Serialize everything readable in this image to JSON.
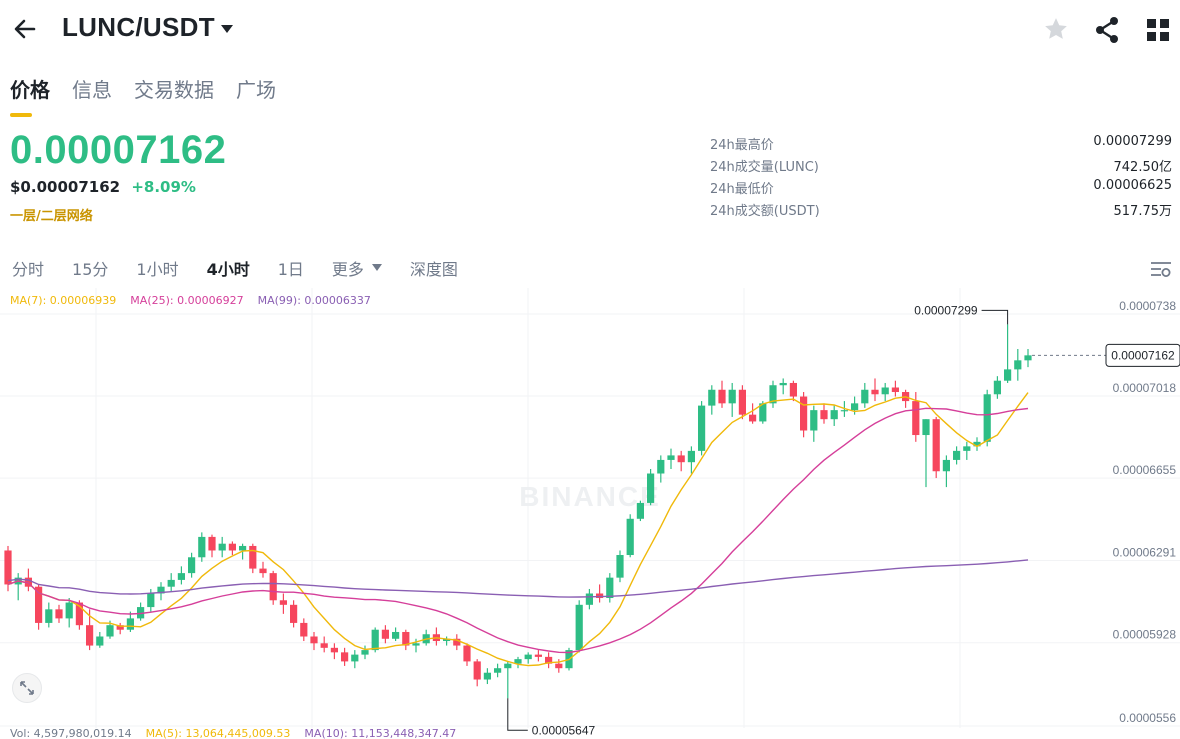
{
  "header": {
    "pair": "LUNC/USDT",
    "icons": [
      "back-arrow-icon",
      "caret-down-icon",
      "star-icon",
      "share-icon",
      "grid-icon"
    ]
  },
  "tabs": [
    {
      "label": "价格",
      "active": true
    },
    {
      "label": "信息",
      "active": false
    },
    {
      "label": "交易数据",
      "active": false
    },
    {
      "label": "广场",
      "active": false
    }
  ],
  "price": {
    "last": "0.00007162",
    "usd": "$0.00007162",
    "change": "+8.09%",
    "network": "一层/二层网络"
  },
  "stats": [
    {
      "label": "24h最高价",
      "value": "0.00007299"
    },
    {
      "label": "24h成交量(LUNC)",
      "value": "742.50亿"
    },
    {
      "label": "24h最低价",
      "value": "0.00006625"
    },
    {
      "label": "24h成交额(USDT)",
      "value": "517.75万"
    }
  ],
  "intervals": [
    {
      "label": "分时",
      "active": false
    },
    {
      "label": "15分",
      "active": false
    },
    {
      "label": "1小时",
      "active": false
    },
    {
      "label": "4小时",
      "active": true
    },
    {
      "label": "1日",
      "active": false
    },
    {
      "label": "更多",
      "active": false,
      "has_caret": true
    },
    {
      "label": "深度图",
      "active": false
    }
  ],
  "ma_legend": {
    "ma7": "MA(7): 0.00006939",
    "ma25": "MA(25): 0.00006927",
    "ma99": "MA(99): 0.00006337"
  },
  "volume_legend": {
    "vol": "Vol: 4,597,980,019.14",
    "ma5": "MA(5): 13,064,445,009.53",
    "ma10": "MA(10): 11,153,448,347.47"
  },
  "colors": {
    "up": "#2ebd85",
    "down": "#f6465d",
    "ma7": "#f0b90b",
    "ma25": "#d53f9a",
    "ma99": "#8a5fb3",
    "accent": "#f0b90b"
  },
  "chart_data": {
    "type": "candlestick",
    "watermark": "BINANCE",
    "y_ticks": [
      "0.0000738",
      "0.00007018",
      "0.00006655",
      "0.00006291",
      "0.00005928",
      "0.0000556"
    ],
    "ylim": [
      5.56e-05,
      7.38e-05
    ],
    "current_price_label": "0.00007162",
    "high_annotation": "0.00007299",
    "low_annotation": "0.00005647",
    "candles": [
      [
        6.3e-05,
        6.32e-05,
        6.12e-05,
        6.15e-05
      ],
      [
        6.15e-05,
        6.2e-05,
        6.08e-05,
        6.18e-05
      ],
      [
        6.18e-05,
        6.22e-05,
        6.12e-05,
        6.14e-05
      ],
      [
        6.14e-05,
        6.15e-05,
        5.95e-05,
        5.98e-05
      ],
      [
        5.98e-05,
        6.07e-05,
        5.96e-05,
        6.04e-05
      ],
      [
        6.04e-05,
        6.06e-05,
        5.98e-05,
        6e-05
      ],
      [
        6e-05,
        6.09e-05,
        5.96e-05,
        6.07e-05
      ],
      [
        6.07e-05,
        6.08e-05,
        5.95e-05,
        5.97e-05
      ],
      [
        5.97e-05,
        6.04e-05,
        5.86e-05,
        5.88e-05
      ],
      [
        5.88e-05,
        5.94e-05,
        5.87e-05,
        5.92e-05
      ],
      [
        5.92e-05,
        5.99e-05,
        5.91e-05,
        5.97e-05
      ],
      [
        5.97e-05,
        5.98e-05,
        5.93e-05,
        5.95e-05
      ],
      [
        5.95e-05,
        6.03e-05,
        5.94e-05,
        6e-05
      ],
      [
        6e-05,
        6.07e-05,
        5.99e-05,
        6.05e-05
      ],
      [
        6.05e-05,
        6.13e-05,
        6.03e-05,
        6.11e-05
      ],
      [
        6.11e-05,
        6.16e-05,
        6.08e-05,
        6.14e-05
      ],
      [
        6.14e-05,
        6.2e-05,
        6.12e-05,
        6.17e-05
      ],
      [
        6.17e-05,
        6.23e-05,
        6.15e-05,
        6.2e-05
      ],
      [
        6.2e-05,
        6.29e-05,
        6.18e-05,
        6.27e-05
      ],
      [
        6.27e-05,
        6.38e-05,
        6.25e-05,
        6.36e-05
      ],
      [
        6.36e-05,
        6.37e-05,
        6.27e-05,
        6.3e-05
      ],
      [
        6.3e-05,
        6.36e-05,
        6.27e-05,
        6.33e-05
      ],
      [
        6.33e-05,
        6.34e-05,
        6.28e-05,
        6.3e-05
      ],
      [
        6.3e-05,
        6.33e-05,
        6.26e-05,
        6.32e-05
      ],
      [
        6.32e-05,
        6.33e-05,
        6.2e-05,
        6.22e-05
      ],
      [
        6.22e-05,
        6.25e-05,
        6.18e-05,
        6.2e-05
      ],
      [
        6.2e-05,
        6.21e-05,
        6.06e-05,
        6.08e-05
      ],
      [
        6.08e-05,
        6.11e-05,
        6.02e-05,
        6.06e-05
      ],
      [
        6.06e-05,
        6.08e-05,
        5.96e-05,
        5.98e-05
      ],
      [
        5.98e-05,
        6e-05,
        5.9e-05,
        5.92e-05
      ],
      [
        5.92e-05,
        5.94e-05,
        5.86e-05,
        5.89e-05
      ],
      [
        5.89e-05,
        5.92e-05,
        5.85e-05,
        5.87e-05
      ],
      [
        5.87e-05,
        5.89e-05,
        5.82e-05,
        5.85e-05
      ],
      [
        5.85e-05,
        5.87e-05,
        5.79e-05,
        5.81e-05
      ],
      [
        5.81e-05,
        5.86e-05,
        5.78e-05,
        5.84e-05
      ],
      [
        5.84e-05,
        5.88e-05,
        5.82e-05,
        5.86e-05
      ],
      [
        5.86e-05,
        5.96e-05,
        5.85e-05,
        5.95e-05
      ],
      [
        5.95e-05,
        5.97e-05,
        5.89e-05,
        5.91e-05
      ],
      [
        5.91e-05,
        5.96e-05,
        5.9e-05,
        5.94e-05
      ],
      [
        5.94e-05,
        5.95e-05,
        5.86e-05,
        5.88e-05
      ],
      [
        5.88e-05,
        5.91e-05,
        5.85e-05,
        5.89e-05
      ],
      [
        5.89e-05,
        5.95e-05,
        5.88e-05,
        5.93e-05
      ],
      [
        5.93e-05,
        5.96e-05,
        5.88e-05,
        5.9e-05
      ],
      [
        5.9e-05,
        5.92e-05,
        5.88e-05,
        5.91e-05
      ],
      [
        5.91e-05,
        5.93e-05,
        5.86e-05,
        5.88e-05
      ],
      [
        5.88e-05,
        5.89e-05,
        5.79e-05,
        5.81e-05
      ],
      [
        5.81e-05,
        5.82e-05,
        5.7e-05,
        5.73e-05
      ],
      [
        5.73e-05,
        5.78e-05,
        5.71e-05,
        5.76e-05
      ],
      [
        5.76e-05,
        5.8e-05,
        5.74e-05,
        5.78e-05
      ],
      [
        5.78e-05,
        5.81e-05,
        5.647e-05,
        5.8e-05
      ],
      [
        5.8e-05,
        5.83e-05,
        5.78e-05,
        5.82e-05
      ],
      [
        5.82e-05,
        5.85e-05,
        5.8e-05,
        5.84e-05
      ],
      [
        5.84e-05,
        5.86e-05,
        5.81e-05,
        5.83e-05
      ],
      [
        5.83e-05,
        5.85e-05,
        5.78e-05,
        5.8e-05
      ],
      [
        5.8e-05,
        5.82e-05,
        5.76e-05,
        5.78e-05
      ],
      [
        5.78e-05,
        5.87e-05,
        5.77e-05,
        5.86e-05
      ],
      [
        5.86e-05,
        6.08e-05,
        5.85e-05,
        6.06e-05
      ],
      [
        6.06e-05,
        6.13e-05,
        6.04e-05,
        6.11e-05
      ],
      [
        6.11e-05,
        6.15e-05,
        6.07e-05,
        6.09e-05
      ],
      [
        6.09e-05,
        6.2e-05,
        6.07e-05,
        6.18e-05
      ],
      [
        6.18e-05,
        6.3e-05,
        6.16e-05,
        6.28e-05
      ],
      [
        6.28e-05,
        6.46e-05,
        6.27e-05,
        6.44e-05
      ],
      [
        6.44e-05,
        6.52e-05,
        6.43e-05,
        6.51e-05
      ],
      [
        6.51e-05,
        6.66e-05,
        6.5e-05,
        6.64e-05
      ],
      [
        6.64e-05,
        6.72e-05,
        6.6e-05,
        6.7e-05
      ],
      [
        6.7e-05,
        6.75e-05,
        6.66e-05,
        6.72e-05
      ],
      [
        6.72e-05,
        6.74e-05,
        6.65e-05,
        6.69e-05
      ],
      [
        6.69e-05,
        6.76e-05,
        6.64e-05,
        6.74e-05
      ],
      [
        6.74e-05,
        6.96e-05,
        6.72e-05,
        6.94e-05
      ],
      [
        6.94e-05,
        7.03e-05,
        6.9e-05,
        7.01e-05
      ],
      [
        7.01e-05,
        7.05e-05,
        6.93e-05,
        6.95e-05
      ],
      [
        6.95e-05,
        7.04e-05,
        6.89e-05,
        7.01e-05
      ],
      [
        7.01e-05,
        7.03e-05,
        6.88e-05,
        6.9e-05
      ],
      [
        6.9e-05,
        6.95e-05,
        6.86e-05,
        6.87e-05
      ],
      [
        6.87e-05,
        6.96e-05,
        6.86e-05,
        6.95e-05
      ],
      [
        6.95e-05,
        7.05e-05,
        6.93e-05,
        7.03e-05
      ],
      [
        7.03e-05,
        7.06e-05,
        6.99e-05,
        7.04e-05
      ],
      [
        7.04e-05,
        7.05e-05,
        6.96e-05,
        6.98e-05
      ],
      [
        6.98e-05,
        7e-05,
        6.8e-05,
        6.83e-05
      ],
      [
        6.83e-05,
        6.94e-05,
        6.78e-05,
        6.92e-05
      ],
      [
        6.92e-05,
        6.95e-05,
        6.86e-05,
        6.88e-05
      ],
      [
        6.88e-05,
        6.94e-05,
        6.85e-05,
        6.92e-05
      ],
      [
        6.92e-05,
        6.96e-05,
        6.89e-05,
        6.92e-05
      ],
      [
        6.92e-05,
        6.98e-05,
        6.9e-05,
        6.95e-05
      ],
      [
        6.95e-05,
        7.04e-05,
        6.93e-05,
        7.01e-05
      ],
      [
        7.01e-05,
        7.06e-05,
        6.96e-05,
        6.99e-05
      ],
      [
        6.99e-05,
        7.04e-05,
        6.96e-05,
        7.02e-05
      ],
      [
        7.02e-05,
        7.05e-05,
        6.98e-05,
        7e-05
      ],
      [
        7e-05,
        7.01e-05,
        6.93e-05,
        6.96e-05
      ],
      [
        6.96e-05,
        7e-05,
        6.78e-05,
        6.81e-05
      ],
      [
        6.81e-05,
        6.88e-05,
        6.58e-05,
        6.88e-05
      ],
      [
        6.88e-05,
        6.89e-05,
        6.62e-05,
        6.65e-05
      ],
      [
        6.65e-05,
        6.72e-05,
        6.58e-05,
        6.7e-05
      ],
      [
        6.7e-05,
        6.76e-05,
        6.68e-05,
        6.74e-05
      ],
      [
        6.74e-05,
        6.78e-05,
        6.7e-05,
        6.76e-05
      ],
      [
        6.76e-05,
        6.8e-05,
        6.74e-05,
        6.78e-05
      ],
      [
        6.78e-05,
        7.01e-05,
        6.76e-05,
        6.99e-05
      ],
      [
        6.99e-05,
        7.07e-05,
        6.97e-05,
        7.05e-05
      ],
      [
        7.05e-05,
        7.299e-05,
        7.04e-05,
        7.1e-05
      ],
      [
        7.1e-05,
        7.19e-05,
        7.05e-05,
        7.14e-05
      ],
      [
        7.14e-05,
        7.19e-05,
        7.11e-05,
        7.162e-05
      ]
    ]
  }
}
